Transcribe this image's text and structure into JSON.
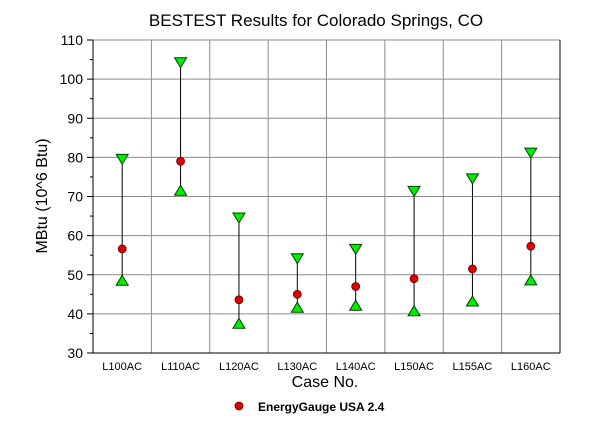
{
  "chart_data": {
    "type": "scatter",
    "title": "BESTEST Results for Colorado Springs, CO",
    "xlabel": "Case No.",
    "ylabel": "MBtu (10^6 Btu)",
    "ylim": [
      30,
      110
    ],
    "yticks": [
      30,
      40,
      50,
      60,
      70,
      80,
      90,
      100,
      110
    ],
    "grid": true,
    "legend_position": "bottom-center",
    "categories": [
      "L100AC",
      "L110AC",
      "L120AC",
      "L130AC",
      "L140AC",
      "L150AC",
      "L155AC",
      "L160AC"
    ],
    "range_max": [
      79.5,
      104.2,
      64.5,
      54.1,
      56.5,
      71.3,
      74.5,
      81.1
    ],
    "range_min": [
      48.6,
      71.6,
      37.6,
      41.7,
      42.2,
      40.8,
      43.3,
      48.7
    ],
    "series": [
      {
        "name": "EnergyGauge USA 2.4",
        "values": [
          56.6,
          79.0,
          43.6,
          45.0,
          47.0,
          49.0,
          51.5,
          57.3
        ],
        "color": "#e00000"
      }
    ],
    "colors": {
      "range_marker": "#00ee00",
      "point_marker": "#e00000",
      "grid": "#8c8c8c"
    }
  }
}
